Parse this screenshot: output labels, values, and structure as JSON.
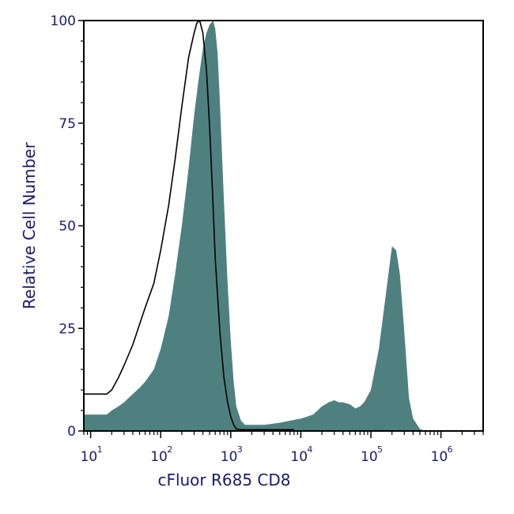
{
  "chart_data": {
    "type": "area",
    "title": "",
    "xlabel": "cFluor R685 CD8",
    "ylabel": "Relative Cell Number",
    "xscale": "log",
    "xlim": [
      8,
      4000000
    ],
    "ylim": [
      0,
      100
    ],
    "xticks": [
      {
        "base": "10",
        "exp": "1",
        "value": 10
      },
      {
        "base": "10",
        "exp": "2",
        "value": 100
      },
      {
        "base": "10",
        "exp": "3",
        "value": 1000
      },
      {
        "base": "10",
        "exp": "4",
        "value": 10000
      },
      {
        "base": "10",
        "exp": "5",
        "value": 100000
      },
      {
        "base": "10",
        "exp": "6",
        "value": 1000000
      }
    ],
    "yticks": [
      {
        "label": "0",
        "value": 0
      },
      {
        "label": "25",
        "value": 25
      },
      {
        "label": "50",
        "value": 50
      },
      {
        "label": "75",
        "value": 75
      },
      {
        "label": "100",
        "value": 100
      }
    ],
    "grid": false,
    "legend": "none",
    "colors": {
      "fill": "#4f8080",
      "outline": "#000000",
      "text": "#1a1a6e",
      "frame": "#000000"
    },
    "series": [
      {
        "style": "filled",
        "x": [
          8,
          14,
          17,
          20,
          25,
          30,
          40,
          50,
          60,
          80,
          100,
          130,
          160,
          200,
          250,
          300,
          350,
          400,
          450,
          500,
          560,
          600,
          650,
          700,
          800,
          900,
          1000,
          1100,
          1200,
          1400,
          1600,
          1800,
          2000,
          3000,
          5000,
          7000,
          10000,
          15000,
          20000,
          25000,
          30000,
          35000,
          40000,
          50000,
          60000,
          70000,
          80000,
          100000,
          130000,
          160000,
          200000,
          230000,
          260000,
          300000,
          350000,
          400000,
          500000,
          550000,
          600000,
          700000
        ],
        "y": [
          4,
          4,
          4,
          5,
          6,
          7,
          9,
          10.5,
          12,
          15,
          20,
          28,
          38,
          50,
          64,
          77,
          86,
          93,
          97,
          99,
          100,
          98,
          92,
          80,
          56,
          36,
          22,
          12,
          6,
          2.5,
          1.5,
          1.5,
          1.5,
          1.5,
          2,
          2.5,
          3,
          4,
          6,
          7,
          7.5,
          7,
          7,
          6.5,
          5.5,
          6,
          7,
          10,
          20,
          32,
          45,
          44,
          38,
          24,
          8,
          3,
          0.5,
          0.2,
          0,
          0
        ]
      },
      {
        "style": "outline",
        "x": [
          8,
          17,
          20,
          25,
          30,
          40,
          50,
          60,
          80,
          100,
          130,
          160,
          200,
          250,
          300,
          330,
          360,
          400,
          450,
          500,
          550,
          600,
          700,
          800,
          900,
          1000,
          1100,
          1200,
          1400,
          1600,
          2000,
          3000,
          5000,
          8000
        ],
        "y": [
          9,
          9,
          10,
          13,
          16,
          21,
          26,
          30,
          36,
          44,
          55,
          66,
          79,
          91,
          97,
          99.5,
          100,
          97,
          88,
          74,
          58,
          42,
          24,
          13,
          7,
          3.5,
          1.5,
          0.5,
          0.3,
          0.3,
          0.3,
          0.3,
          0.3,
          0.3
        ]
      }
    ]
  }
}
